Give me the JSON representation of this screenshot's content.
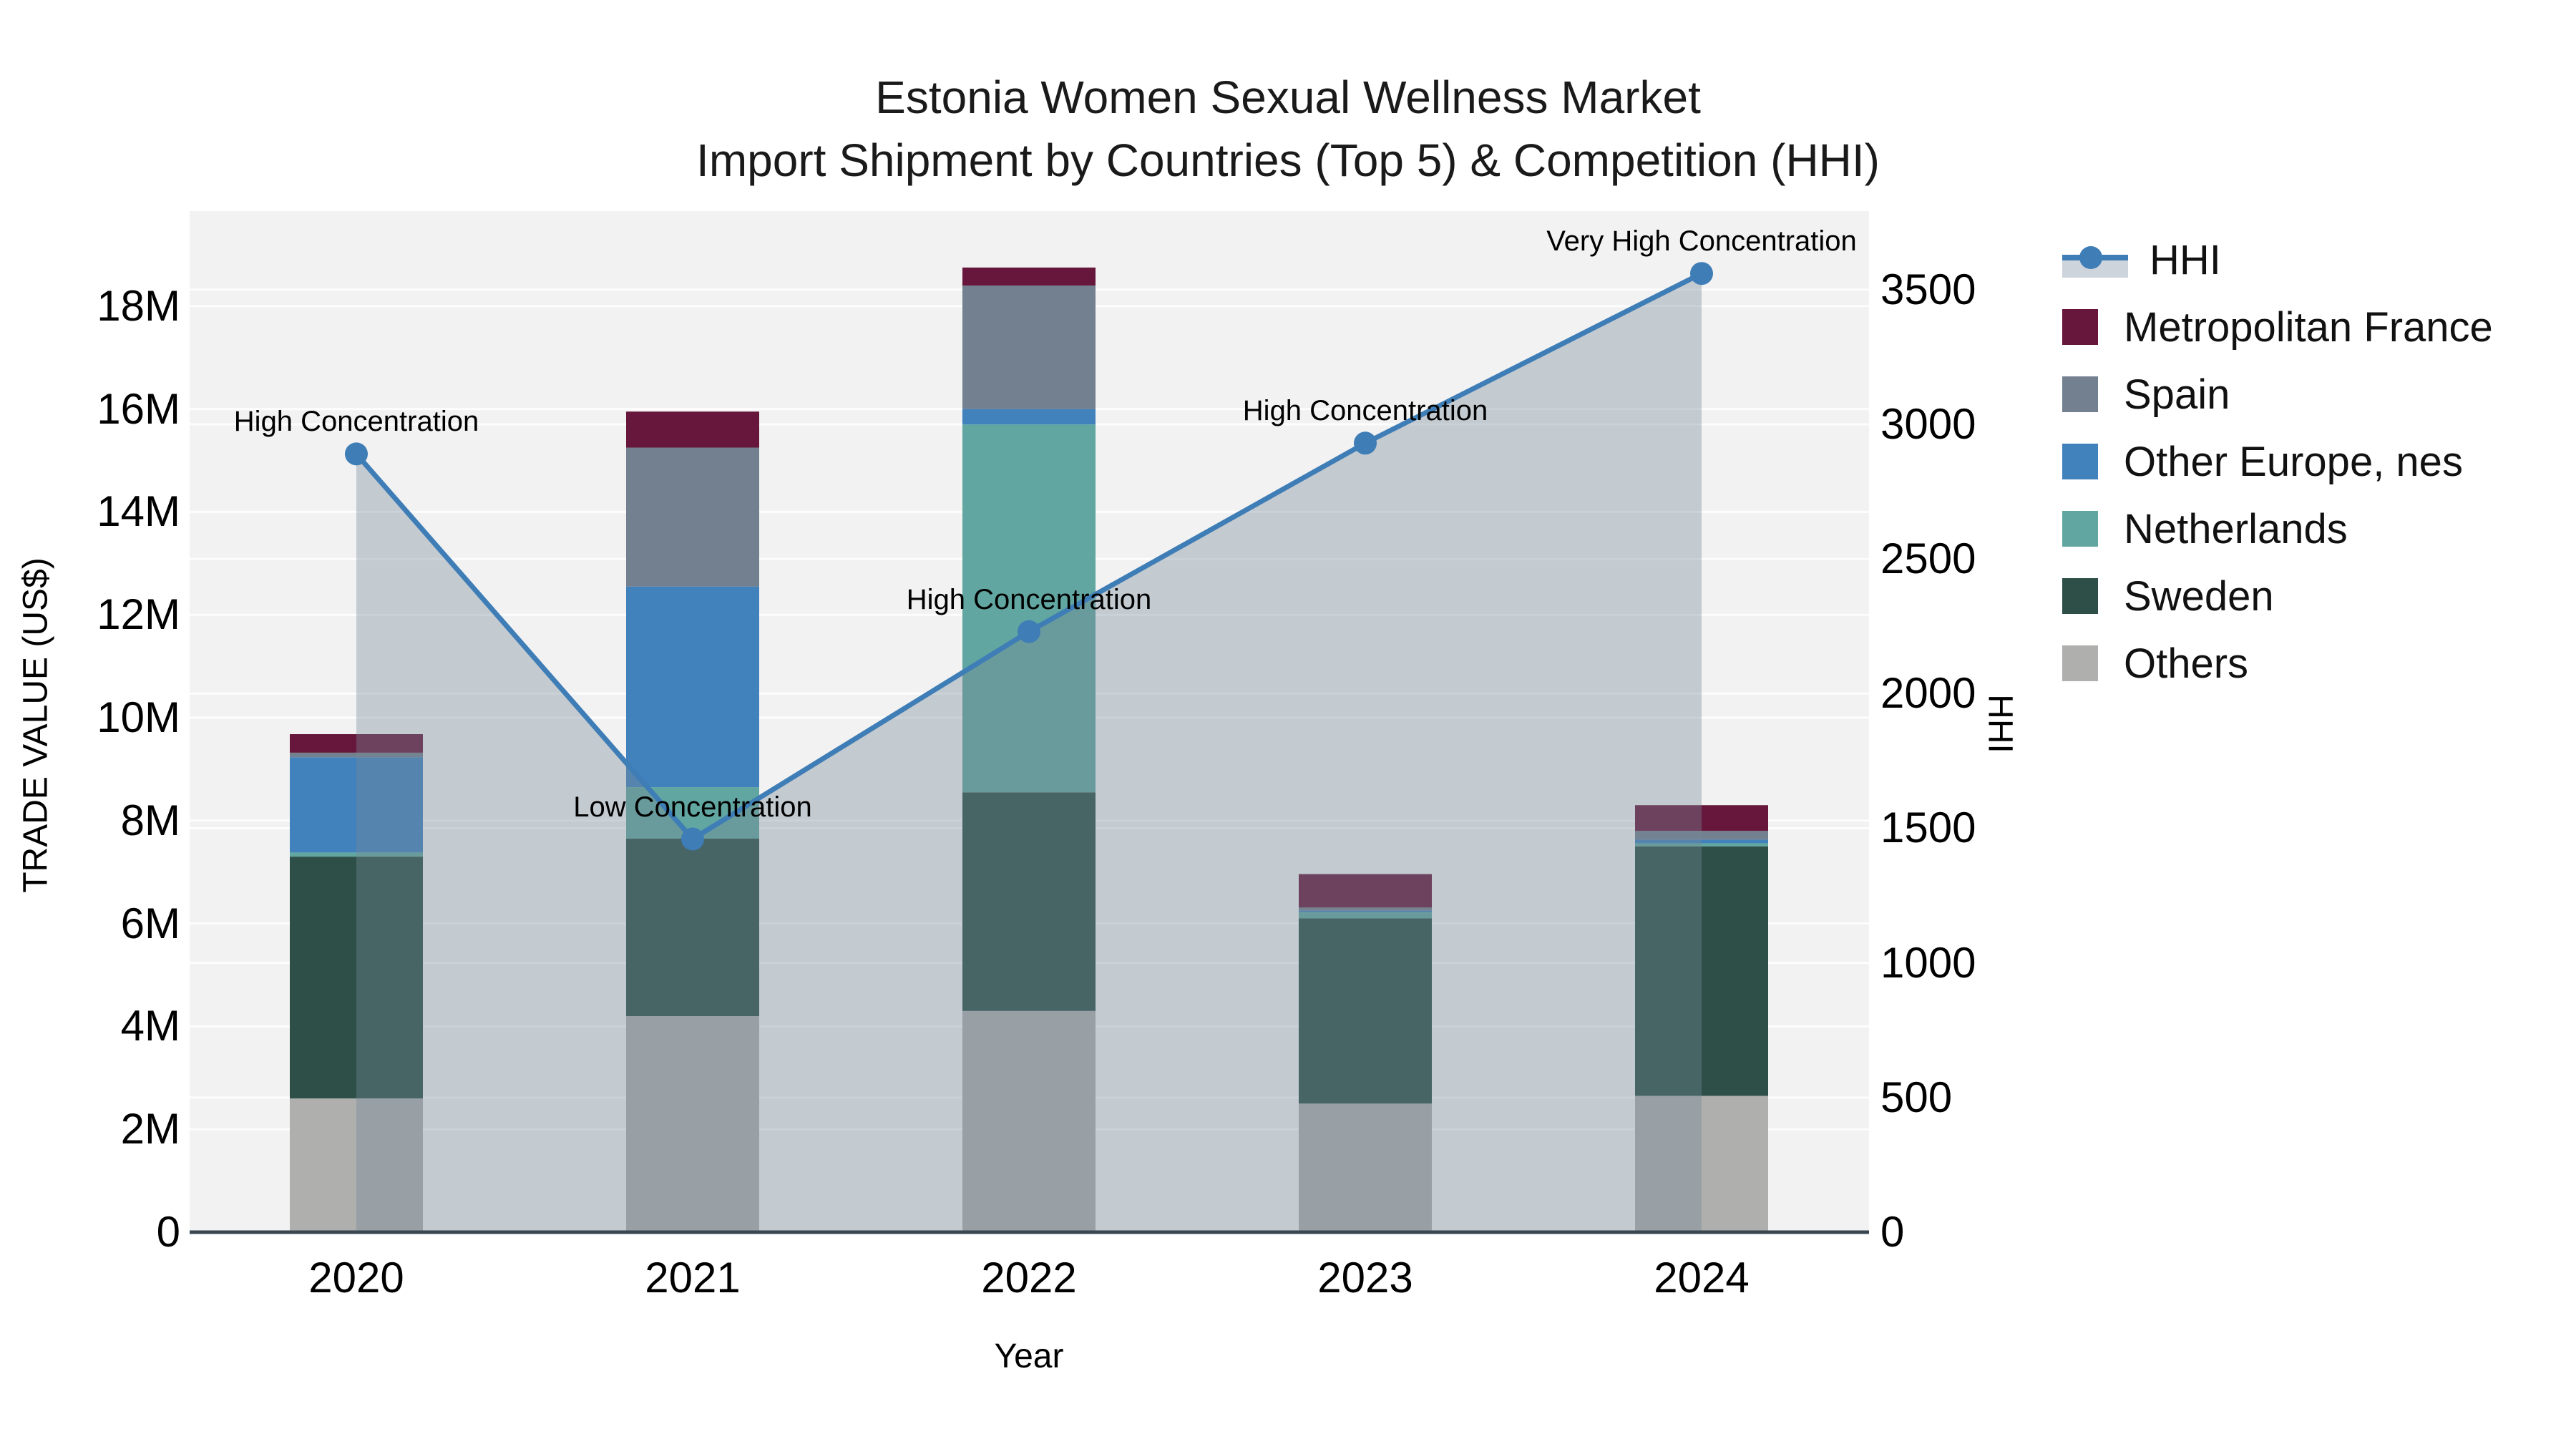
{
  "title": {
    "line1": "Estonia Women Sexual Wellness Market",
    "line2": "Import Shipment by Countries (Top 5) & Competition (HHI)"
  },
  "axes": {
    "x": {
      "title": "Year",
      "ticks": [
        "2020",
        "2021",
        "2022",
        "2023",
        "2024"
      ]
    },
    "y_left": {
      "title": "TRADE VALUE (US$)",
      "ticks": [
        "0",
        "2M",
        "4M",
        "6M",
        "8M",
        "10M",
        "12M",
        "14M",
        "16M",
        "18M"
      ],
      "tick_values_millions": [
        0,
        2,
        4,
        6,
        8,
        10,
        12,
        14,
        16,
        18
      ]
    },
    "y_right": {
      "title": "HHI",
      "ticks": [
        "0",
        "500",
        "1000",
        "1500",
        "2000",
        "2500",
        "3000",
        "3500"
      ],
      "tick_values": [
        0,
        500,
        1000,
        1500,
        2000,
        2500,
        3000,
        3500
      ]
    }
  },
  "legend": {
    "entries": [
      {
        "label": "HHI",
        "type": "line",
        "color": "#3E7DB6"
      },
      {
        "label": "Metropolitan France",
        "type": "bar",
        "color": "#66173B"
      },
      {
        "label": "Spain",
        "type": "bar",
        "color": "#73808F"
      },
      {
        "label": "Other Europe, nes",
        "type": "bar",
        "color": "#4181BC"
      },
      {
        "label": "Netherlands",
        "type": "bar",
        "color": "#61A6A1"
      },
      {
        "label": "Sweden",
        "type": "bar",
        "color": "#2D4F48"
      },
      {
        "label": "Others",
        "type": "bar",
        "color": "#AFAFAD"
      }
    ]
  },
  "colors": {
    "plot_background": "#F2F2F2",
    "gridline": "#FFFFFF",
    "axis_line": "#3A464F",
    "hhi_line": "#3E7DB6",
    "hhi_area_fill": "rgba(119,136,153,0.38)"
  },
  "chart_data": {
    "type": "bar",
    "subtype": "stacked-bars-with-line-overlay",
    "title": "Estonia Women Sexual Wellness Market Import Shipment by Countries (Top 5) & Competition (HHI)",
    "categories": [
      2020,
      2021,
      2022,
      2023,
      2024
    ],
    "bar_value_unit": "million US$",
    "xlabel": "Year",
    "ylabel_left": "TRADE VALUE (US$)",
    "ylabel_right": "HHI",
    "ylim_left_millions": [
      0,
      19.85
    ],
    "ylim_right": [
      0,
      3792
    ],
    "grid": true,
    "legend_position": "right",
    "series": [
      {
        "name": "Others",
        "color": "#AFAFAD",
        "values": [
          2.6,
          4.2,
          4.3,
          2.5,
          2.65
        ]
      },
      {
        "name": "Sweden",
        "color": "#2D4F48",
        "values": [
          4.7,
          3.45,
          4.25,
          3.6,
          4.85
        ]
      },
      {
        "name": "Netherlands",
        "color": "#61A6A1",
        "values": [
          0.08,
          1.0,
          7.15,
          0.12,
          0.06
        ]
      },
      {
        "name": "Other Europe, nes",
        "color": "#4181BC",
        "values": [
          1.85,
          3.9,
          0.3,
          0.03,
          0.07
        ]
      },
      {
        "name": "Spain",
        "color": "#73808F",
        "values": [
          0.09,
          2.7,
          2.4,
          0.06,
          0.17
        ]
      },
      {
        "name": "Metropolitan France",
        "color": "#66173B",
        "values": [
          0.36,
          0.7,
          0.35,
          0.65,
          0.5
        ]
      }
    ],
    "bar_totals_millions": [
      9.68,
      15.95,
      18.75,
      6.96,
      8.3
    ],
    "line_series": {
      "name": "HHI",
      "color": "#3E7DB6",
      "area_fill": "rgba(119,136,153,0.38)",
      "values": [
        2890,
        1460,
        2230,
        2930,
        3560
      ],
      "annotations": [
        "High Concentration",
        "Low Concentration",
        "High Concentration",
        "High Concentration",
        "Very High Concentration"
      ]
    }
  }
}
